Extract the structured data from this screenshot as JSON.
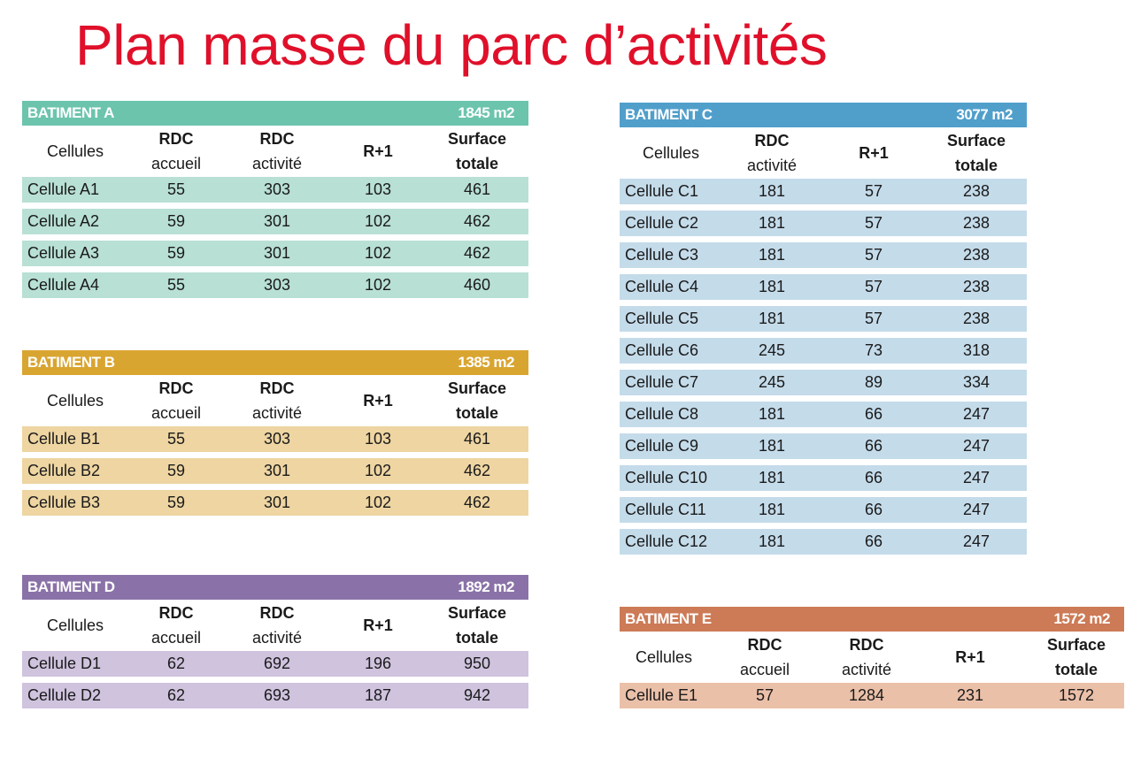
{
  "title": "Plan masse du parc d’activités",
  "buildings": [
    {
      "id": "A",
      "name": "BATIMENT A",
      "surface": "1845 m2",
      "header_color": "#6cc4ad",
      "row_color": "#b8e0d4",
      "columns": [
        [
          "Cellules",
          ""
        ],
        [
          "RDC",
          "accueil"
        ],
        [
          "RDC",
          "activité"
        ],
        [
          "R+1",
          ""
        ],
        [
          "Surface",
          "totale"
        ]
      ],
      "rows": [
        [
          "Cellule A1",
          "55",
          "303",
          "103",
          "461"
        ],
        [
          "Cellule A2",
          "59",
          "301",
          "102",
          "462"
        ],
        [
          "Cellule A3",
          "59",
          "301",
          "102",
          "462"
        ],
        [
          "Cellule A4",
          "55",
          "303",
          "102",
          "460"
        ]
      ]
    },
    {
      "id": "B",
      "name": "BATIMENT B",
      "surface": "1385 m2",
      "header_color": "#d9a531",
      "row_color": "#eed5a2",
      "columns": [
        [
          "Cellules",
          ""
        ],
        [
          "RDC",
          "accueil"
        ],
        [
          "RDC",
          "activité"
        ],
        [
          "R+1",
          ""
        ],
        [
          "Surface",
          "totale"
        ]
      ],
      "rows": [
        [
          "Cellule B1",
          "55",
          "303",
          "103",
          "461"
        ],
        [
          "Cellule B2",
          "59",
          "301",
          "102",
          "462"
        ],
        [
          "Cellule B3",
          "59",
          "301",
          "102",
          "462"
        ]
      ]
    },
    {
      "id": "D",
      "name": "BATIMENT D",
      "surface": "1892 m2",
      "header_color": "#8a72a8",
      "row_color": "#cfc3de",
      "columns": [
        [
          "Cellules",
          ""
        ],
        [
          "RDC",
          "accueil"
        ],
        [
          "RDC",
          "activité"
        ],
        [
          "R+1",
          ""
        ],
        [
          "Surface",
          "totale"
        ]
      ],
      "rows": [
        [
          "Cellule D1",
          "62",
          "692",
          "196",
          "950"
        ],
        [
          "Cellule D2",
          "62",
          "693",
          "187",
          "942"
        ]
      ]
    },
    {
      "id": "C",
      "name": "BATIMENT C",
      "surface": "3077 m2",
      "header_color": "#509fcb",
      "row_color": "#c4dbea",
      "columns": [
        [
          "Cellules",
          ""
        ],
        [
          "RDC",
          "activité"
        ],
        [
          "R+1",
          ""
        ],
        [
          "Surface",
          "totale"
        ]
      ],
      "rows": [
        [
          "Cellule C1",
          "181",
          "57",
          "238"
        ],
        [
          "Cellule C2",
          "181",
          "57",
          "238"
        ],
        [
          "Cellule C3",
          "181",
          "57",
          "238"
        ],
        [
          "Cellule C4",
          "181",
          "57",
          "238"
        ],
        [
          "Cellule C5",
          "181",
          "57",
          "238"
        ],
        [
          "Cellule C6",
          "245",
          "73",
          "318"
        ],
        [
          "Cellule C7",
          "245",
          "89",
          "334"
        ],
        [
          "Cellule C8",
          "181",
          "66",
          "247"
        ],
        [
          "Cellule C9",
          "181",
          "66",
          "247"
        ],
        [
          "Cellule C10",
          "181",
          "66",
          "247"
        ],
        [
          "Cellule C11",
          "181",
          "66",
          "247"
        ],
        [
          "Cellule C12",
          "181",
          "66",
          "247"
        ]
      ]
    },
    {
      "id": "E",
      "name": "BATIMENT E",
      "surface": "1572 m2",
      "header_color": "#cd7a56",
      "row_color": "#ebc0a9",
      "columns": [
        [
          "Cellules",
          ""
        ],
        [
          "RDC",
          "accueil"
        ],
        [
          "RDC",
          "activité"
        ],
        [
          "R+1",
          ""
        ],
        [
          "Surface",
          "totale"
        ]
      ],
      "rows": [
        [
          "Cellule E1",
          "57",
          "1284",
          "231",
          "1572"
        ]
      ]
    }
  ]
}
